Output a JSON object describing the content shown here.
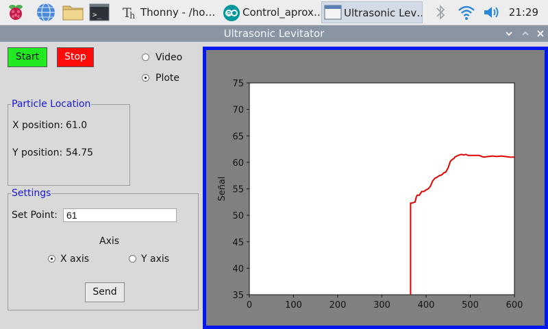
{
  "taskbar": {
    "launchers": [
      {
        "name": "raspberry-menu-icon"
      },
      {
        "name": "web-browser-icon"
      },
      {
        "name": "file-manager-icon"
      },
      {
        "name": "terminal-icon"
      }
    ],
    "tasks": [
      {
        "label": "Thonny  -  /ho…",
        "icon": "thonny-icon"
      },
      {
        "label": "Control_aprox…",
        "icon": "arduino-icon"
      },
      {
        "label": "Ultrasonic Lev…",
        "icon": "window-icon",
        "active": true
      }
    ],
    "tray": [
      "bluetooth-icon",
      "wifi-icon",
      "volume-icon"
    ],
    "clock": "21:29"
  },
  "window": {
    "title": "Ultrasonic Levitator",
    "buttons": [
      "chevron-down-icon",
      "chevron-up-icon",
      "close-icon"
    ]
  },
  "controls": {
    "start_label": "Start",
    "stop_label": "Stop",
    "start_color": "#22e822",
    "stop_color": "#ff0b0b",
    "view_options": [
      {
        "label": "Video",
        "selected": false
      },
      {
        "label": "Plote",
        "selected": true
      }
    ]
  },
  "particle": {
    "title": "Particle Location",
    "x_label": "X position:",
    "x_value": "61.0",
    "y_label": "Y position:",
    "y_value": "54.75"
  },
  "settings": {
    "title": "Settings",
    "setpoint_label": "Set Point:",
    "setpoint_value": "61",
    "axis_label": "Axis",
    "axis_options": [
      {
        "label": "X axis",
        "selected": true
      },
      {
        "label": "Y axis",
        "selected": false
      }
    ],
    "send_label": "Send"
  },
  "chart_data": {
    "type": "line",
    "title": "",
    "xlabel": "",
    "ylabel": "Señal",
    "xlim": [
      0,
      600
    ],
    "ylim": [
      35,
      75
    ],
    "xticks": [
      0,
      100,
      200,
      300,
      400,
      500,
      600
    ],
    "yticks": [
      35,
      40,
      45,
      50,
      55,
      60,
      65,
      70,
      75
    ],
    "grid": false,
    "series": [
      {
        "color": "#e00000",
        "x": [
          365,
          365,
          367,
          375,
          378,
          380,
          385,
          390,
          395,
          400,
          405,
          410,
          415,
          420,
          425,
          430,
          435,
          440,
          445,
          450,
          455,
          460,
          463,
          465,
          470,
          475,
          480,
          485,
          490,
          495,
          500,
          510,
          520,
          530,
          540,
          550,
          560,
          570,
          580,
          590,
          600
        ],
        "y": [
          35,
          52.3,
          52.3,
          52.5,
          53.5,
          53.8,
          53.8,
          54.5,
          54.5,
          54.8,
          55.0,
          55.5,
          56.5,
          57.0,
          57.2,
          57.5,
          57.6,
          58.0,
          58.2,
          59.0,
          60.2,
          60.6,
          60.7,
          61.0,
          61.2,
          61.4,
          61.5,
          61.4,
          61.5,
          61.3,
          61.3,
          61.3,
          61.3,
          61.0,
          61.1,
          61.2,
          61.1,
          61.2,
          61.1,
          61.0,
          61.0
        ]
      }
    ]
  }
}
